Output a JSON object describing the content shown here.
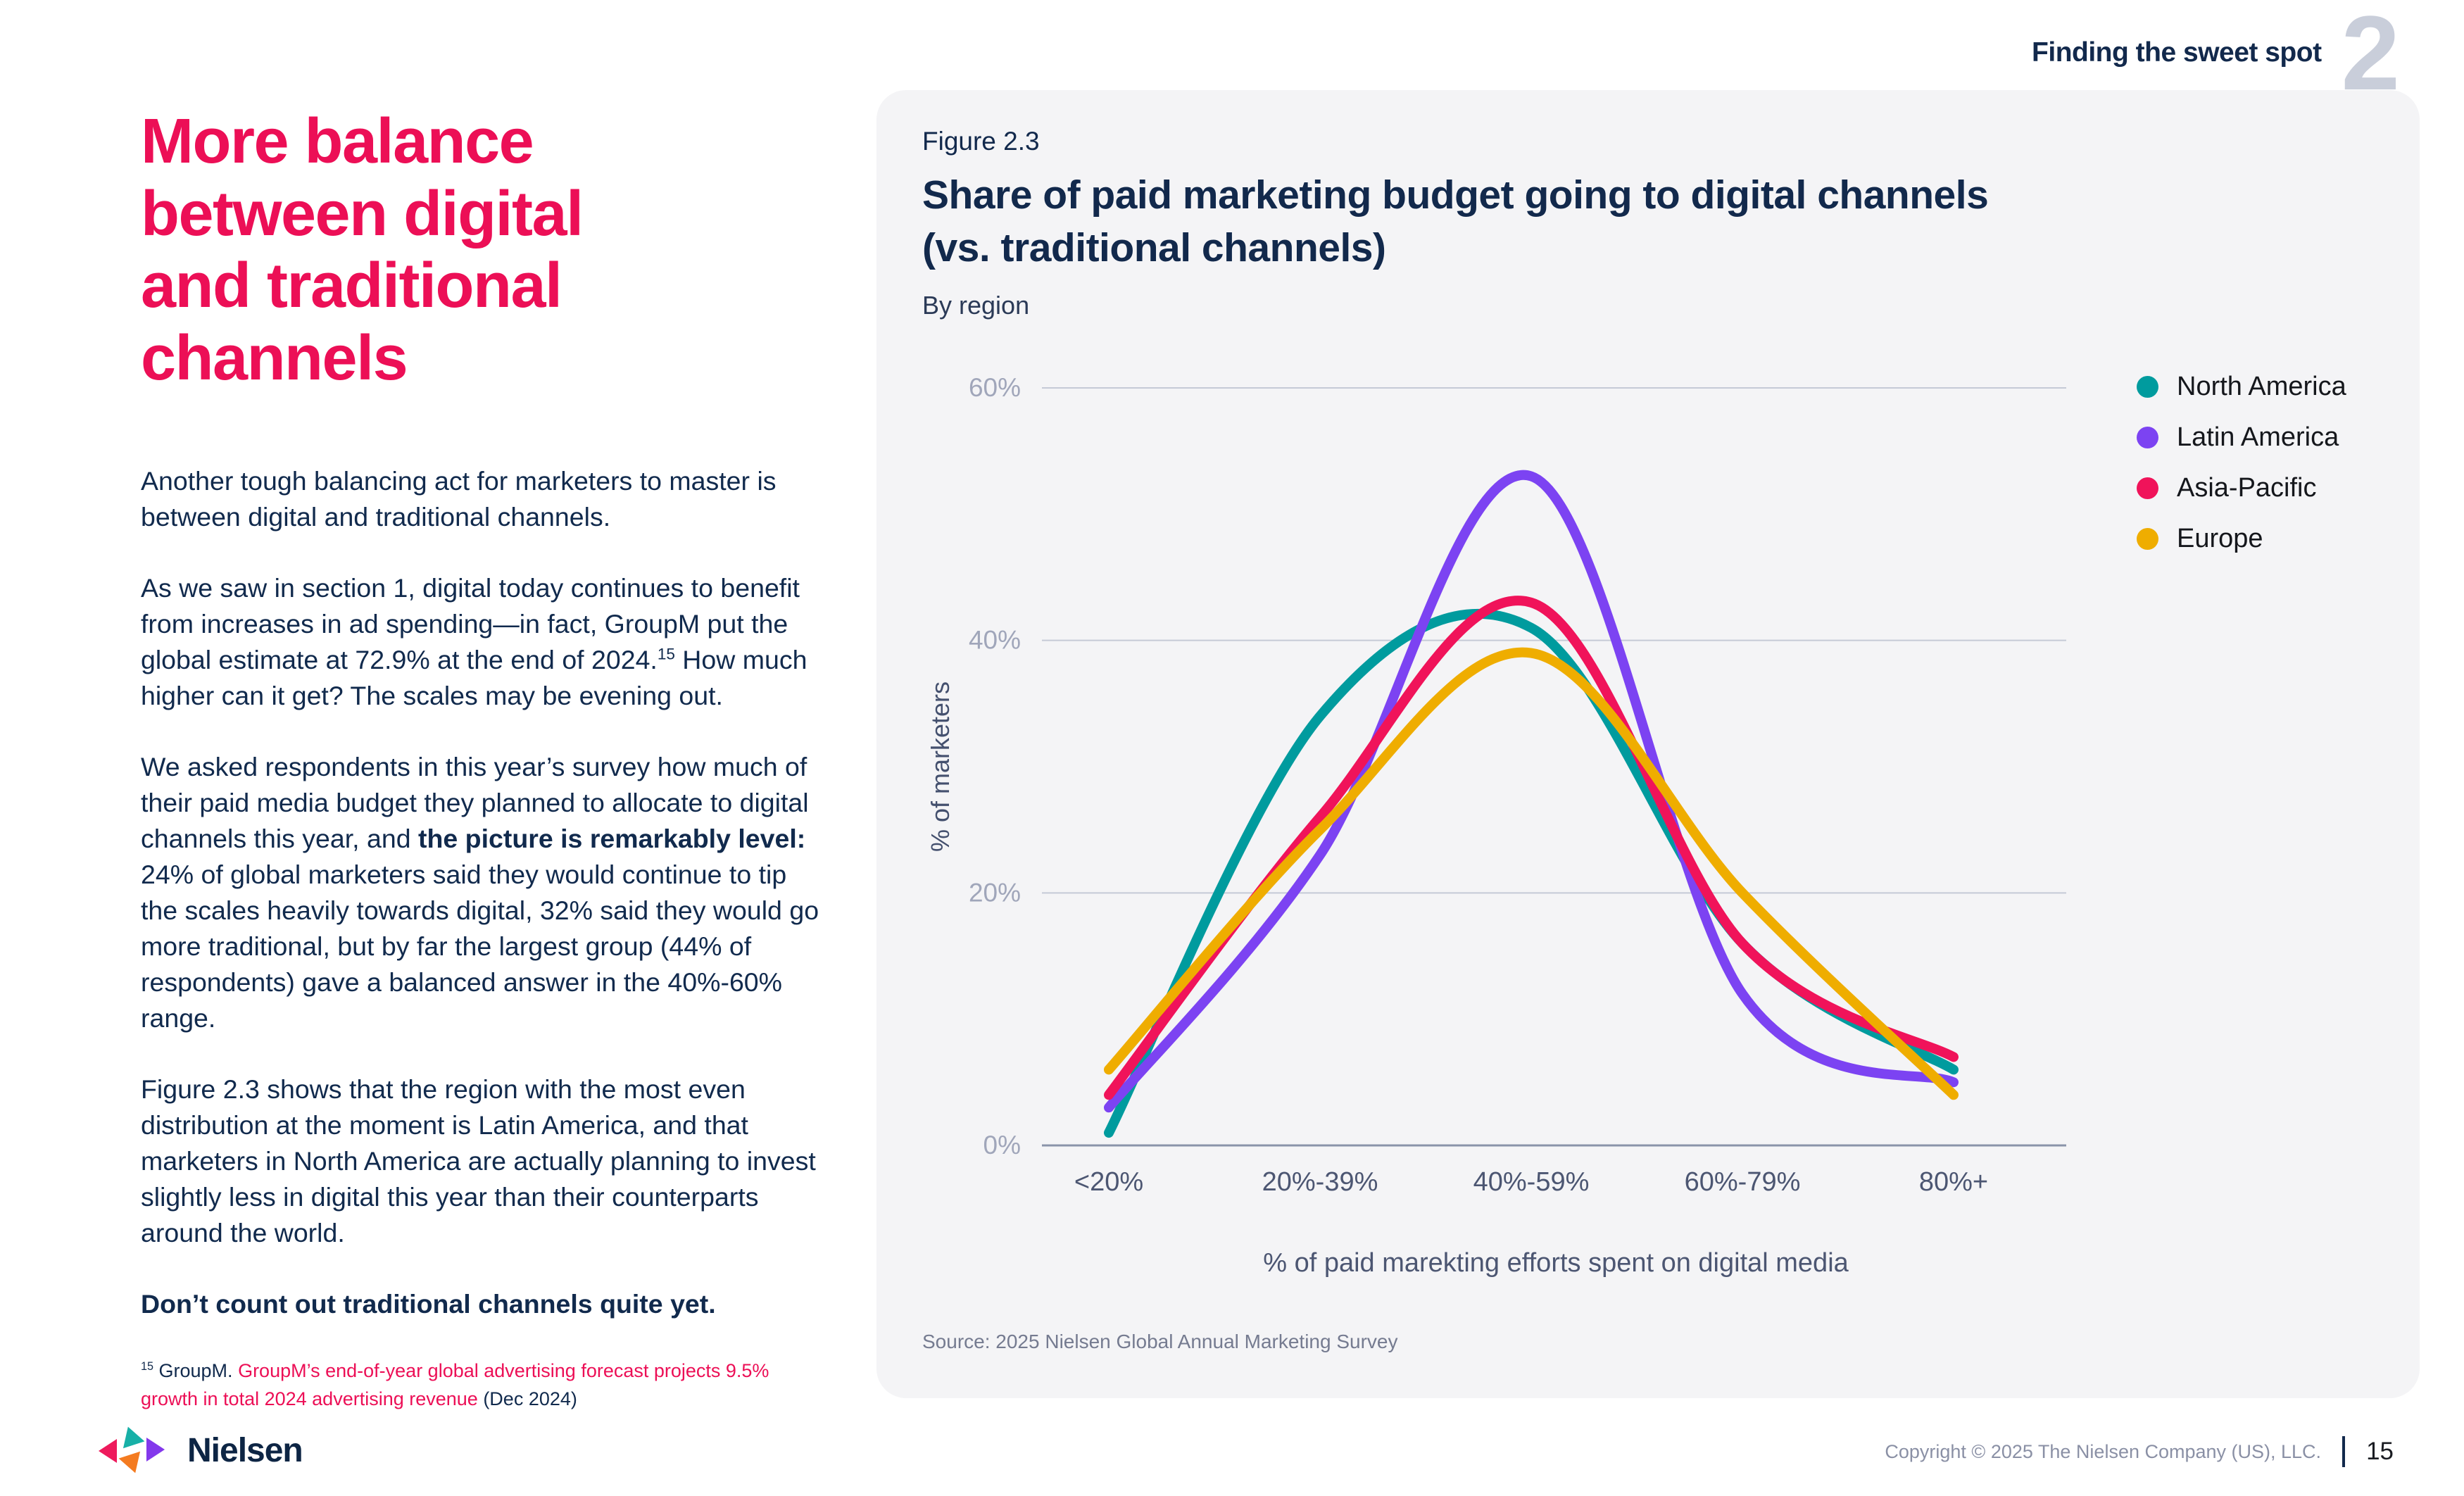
{
  "header": {
    "section_label": "Finding the sweet spot",
    "section_number": "2"
  },
  "article": {
    "heading_lines": [
      "More balance",
      "between digital",
      "and traditional",
      "channels"
    ],
    "p1": "Another tough balancing act for marketers to master is between digital and traditional channels.",
    "p2_pre": "As we saw in section 1, digital today continues to benefit from increases in ad spending—in fact, GroupM put the global estimate at 72.9% at the end of 2024.",
    "p2_sup": "15",
    "p2_post": " How much higher can it get? The scales may be evening out.",
    "p3_pre": "We asked respondents in this year’s survey how much of their paid media budget they planned to allocate to digital channels this year, and ",
    "p3_bold": "the picture is remarkably level:",
    "p3_post": " 24% of global marketers said they would continue to tip the scales heavily towards digital, 32% said they would go more traditional, but by far the largest group (44% of respondents) gave a balanced answer in the 40%-60% range.",
    "p4": "Figure 2.3 shows that the region with the most even distribution at the moment is Latin America, and that marketers in North America are actually planning to invest slightly less in digital this year than their counterparts around the world.",
    "p5": "Don’t count out traditional channels quite yet.",
    "footnote": {
      "sup": "15",
      "pre": " GroupM. ",
      "link": "GroupM’s end-of-year global advertising forecast projects 9.5% growth in total 2024 advertising revenue",
      "post": " (Dec 2024)"
    }
  },
  "card": {
    "figure_label": "Figure 2.3",
    "title_lines": [
      "Share of paid marketing budget going to digital channels",
      "(vs. traditional channels)"
    ],
    "subtitle": "By region",
    "source": "Source: 2025 Nielsen Global Annual Marketing Survey"
  },
  "chart_data": {
    "type": "line",
    "title": "Share of paid marketing budget going to digital channels (vs. traditional channels)",
    "subtitle": "By region",
    "categories": [
      "<20%",
      "20%-39%",
      "40%-59%",
      "60%-79%",
      "80%+"
    ],
    "series": [
      {
        "name": "North America",
        "color": "#009B9E",
        "values": [
          1,
          34,
          41,
          16,
          6
        ]
      },
      {
        "name": "Latin America",
        "color": "#7C43F2",
        "values": [
          3,
          23,
          53,
          12,
          5
        ]
      },
      {
        "name": "Asia-Pacific",
        "color": "#F0135A",
        "values": [
          4,
          26,
          43,
          16,
          7
        ]
      },
      {
        "name": "Europe",
        "color": "#EFAD00",
        "values": [
          6,
          25,
          39,
          20,
          4
        ]
      }
    ],
    "xlabel": "% of paid marekting efforts spent on digital media",
    "ylabel": "% of marketers",
    "yticks": [
      0,
      20,
      40,
      60
    ],
    "ylim": [
      0,
      60
    ],
    "grid": true,
    "legend_position": "right",
    "colors": {
      "gridline": "#C5CAD6",
      "axis_line": "#8A93A9",
      "y_tick_label": "#A0A6BA",
      "x_tick_label": "#4C5672"
    }
  },
  "footer": {
    "brand": "Nielsen",
    "copyright": "Copyright © 2025 The Nielsen Company (US), LLC.",
    "page": "15"
  }
}
